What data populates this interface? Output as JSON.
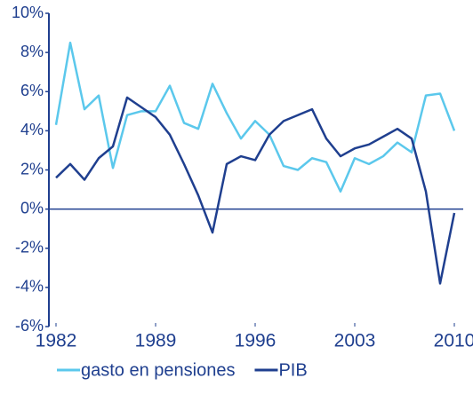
{
  "chart_data": {
    "type": "line",
    "x": [
      1982,
      1983,
      1984,
      1985,
      1986,
      1987,
      1988,
      1989,
      1990,
      1991,
      1992,
      1993,
      1994,
      1995,
      1996,
      1997,
      1998,
      1999,
      2000,
      2001,
      2002,
      2003,
      2004,
      2005,
      2006,
      2007,
      2008,
      2009,
      2010
    ],
    "series": [
      {
        "name": "gasto en pensiones",
        "color": "#5bc8ec",
        "values": [
          4.3,
          8.5,
          5.1,
          5.8,
          2.1,
          4.8,
          5.0,
          5.0,
          6.3,
          4.4,
          4.1,
          6.4,
          4.9,
          3.6,
          4.5,
          3.8,
          2.2,
          2.0,
          2.6,
          2.4,
          0.9,
          2.6,
          2.3,
          2.7,
          3.4,
          2.9,
          5.8,
          5.9,
          4.0
        ]
      },
      {
        "name": "PIB",
        "color": "#1f3f8f",
        "values": [
          1.6,
          2.3,
          1.5,
          2.6,
          3.2,
          5.7,
          5.2,
          4.7,
          3.8,
          2.3,
          0.7,
          -1.2,
          2.3,
          2.7,
          2.5,
          3.8,
          4.5,
          4.8,
          5.1,
          3.6,
          2.7,
          3.1,
          3.3,
          3.7,
          4.1,
          3.6,
          0.9,
          -3.8,
          -0.2
        ]
      }
    ],
    "xlim": [
      1982,
      2010
    ],
    "xticks": [
      1982,
      1989,
      1996,
      2003,
      2010
    ],
    "ylim": [
      -6,
      10
    ],
    "yticks": [
      {
        "value": -6,
        "label": "-6%"
      },
      {
        "value": -4,
        "label": "-4%"
      },
      {
        "value": -2,
        "label": "-2%"
      },
      {
        "value": 0,
        "label": "0%"
      },
      {
        "value": 2,
        "label": "2%"
      },
      {
        "value": 4,
        "label": "4%"
      },
      {
        "value": 6,
        "label": "6%"
      },
      {
        "value": 8,
        "label": "8%"
      },
      {
        "value": 10,
        "label": "10%"
      }
    ],
    "grid": false
  }
}
